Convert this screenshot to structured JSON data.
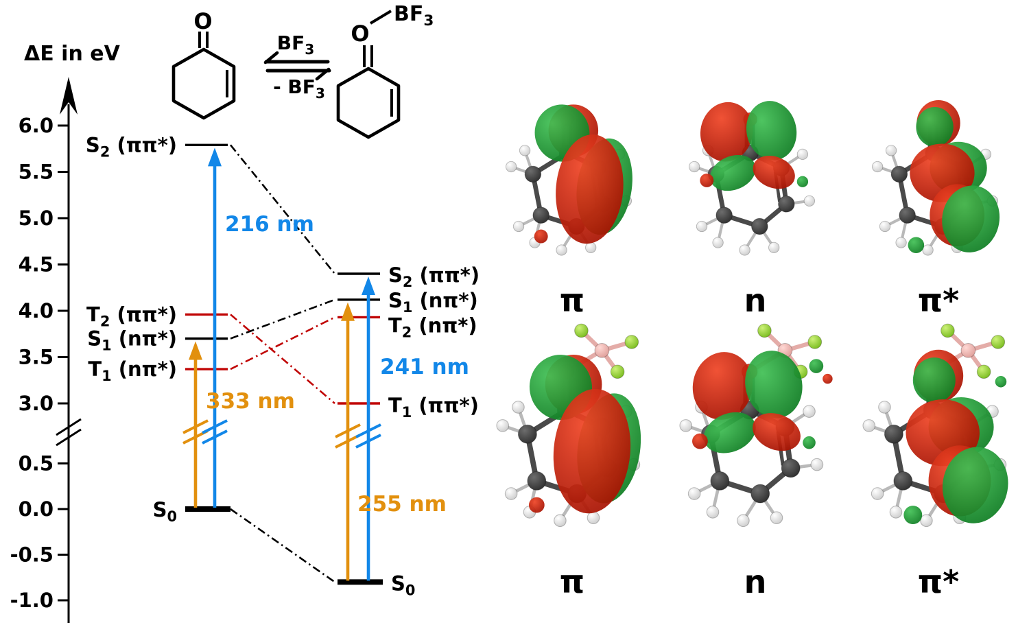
{
  "colors": {
    "black": "#000000",
    "dark_red": "#c00505",
    "orange": "#e2900e",
    "blue": "#1287e8",
    "lobe_red": "#cc1505",
    "lobe_green": "#169a2e",
    "carbon": "#3f3f3f",
    "hydrogen": "#f4f4f4",
    "oxygen": "#d42310",
    "boron": "#f2b8b4",
    "fluorine": "#96d23e"
  },
  "axis": {
    "title": "ΔE in eV",
    "tick_labels": [
      "6.0",
      "5.5",
      "5.0",
      "4.5",
      "4.0",
      "3.5",
      "3.0",
      "0.5",
      "0.0",
      "-0.5",
      "-1.0"
    ],
    "has_break": true
  },
  "reaction": {
    "left_oxygen_label": "O",
    "right_oxygen_label": "O",
    "right_bf3_label": "BF3",
    "forward_label": "BF3",
    "reverse_label": "- BF3"
  },
  "chart_data": {
    "type": "energy-level-diagram",
    "ylabel": "ΔE in eV",
    "unit": "eV",
    "ylim": [
      -1.0,
      6.0
    ],
    "axis_break_between": [
      0.75,
      2.75
    ],
    "molecules": [
      {
        "name": "2-cyclohexenone",
        "levels": [
          {
            "state": "S2 (ππ*)",
            "energy": 5.79,
            "color": "black"
          },
          {
            "state": "T2 (ππ*)",
            "energy": 3.96,
            "color": "dark_red"
          },
          {
            "state": "S1 (nπ*)",
            "energy": 3.7,
            "color": "black"
          },
          {
            "state": "T1 (nπ*)",
            "energy": 3.37,
            "color": "dark_red"
          },
          {
            "state": "S0",
            "energy": 0.0,
            "color": "black",
            "ground": true
          }
        ],
        "excitations": [
          {
            "label": "333 nm",
            "to": "S1 (nπ*)",
            "color": "orange"
          },
          {
            "label": "216 nm",
            "to": "S2 (ππ*)",
            "color": "blue"
          }
        ]
      },
      {
        "name": "2-cyclohexenone–BF3",
        "levels": [
          {
            "state": "S2 (ππ*)",
            "energy": 4.4,
            "color": "black"
          },
          {
            "state": "S1 (nπ*)",
            "energy": 4.12,
            "color": "black"
          },
          {
            "state": "T2 (nπ*)",
            "energy": 3.93,
            "color": "dark_red"
          },
          {
            "state": "T1 (ππ*)",
            "energy": 3.0,
            "color": "dark_red"
          },
          {
            "state": "S0",
            "energy": -0.8,
            "color": "black",
            "ground": true
          }
        ],
        "excitations": [
          {
            "label": "255 nm",
            "to": "S1 (nπ*)",
            "color": "orange"
          },
          {
            "label": "241 nm",
            "to": "S2 (ππ*)",
            "color": "blue"
          }
        ]
      }
    ],
    "correlations": [
      {
        "from": "S2 (ππ*)",
        "to": "S2 (ππ*)",
        "color": "black"
      },
      {
        "from": "S1 (nπ*)",
        "to": "S1 (nπ*)",
        "color": "black"
      },
      {
        "from": "T2 (ππ*)",
        "to": "T1 (ππ*)",
        "color": "dark_red"
      },
      {
        "from": "T1 (nπ*)",
        "to": "T2 (nπ*)",
        "color": "dark_red"
      },
      {
        "from": "S0",
        "to": "S0",
        "color": "black"
      }
    ]
  },
  "orbitals": {
    "rows": [
      {
        "molecule": "2-cyclohexenone",
        "items": [
          {
            "label": "π",
            "type": "pi"
          },
          {
            "label": "n",
            "type": "n"
          },
          {
            "label": "π*",
            "type": "pistar"
          }
        ]
      },
      {
        "molecule": "2-cyclohexenone–BF3",
        "items": [
          {
            "label": "π",
            "type": "pi"
          },
          {
            "label": "n",
            "type": "n"
          },
          {
            "label": "π*",
            "type": "pistar"
          }
        ]
      }
    ]
  }
}
